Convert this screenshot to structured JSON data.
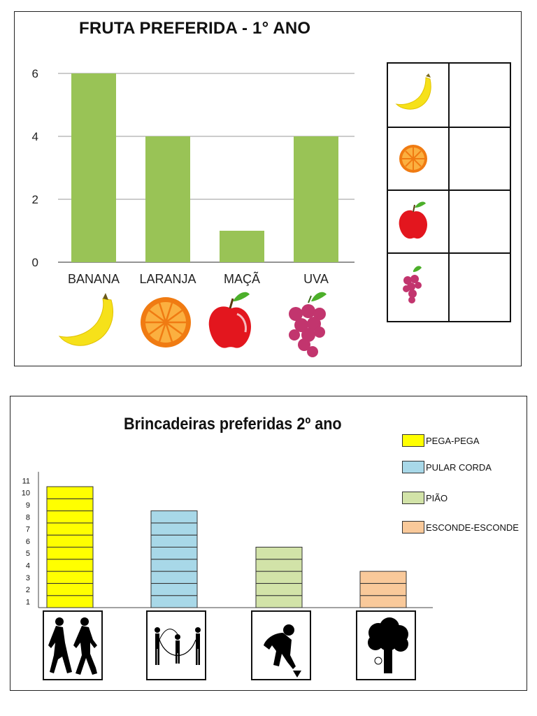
{
  "chart1": {
    "title": "FRUTA PREFERIDA - 1° ANO",
    "y_ticks": [
      "0",
      "2",
      "4",
      "6"
    ],
    "bar_color": "#99c356",
    "icons": [
      "banana-icon",
      "orange-icon",
      "apple-icon",
      "grapes-icon"
    ]
  },
  "chart2": {
    "title": "Brincadeiras  preferidas 2º ano",
    "y_ticks": [
      "1",
      "2",
      "3",
      "4",
      "5",
      "6",
      "7",
      "8",
      "9",
      "10",
      "11"
    ],
    "icons": [
      "running-children-icon",
      "jump-rope-icon",
      "spinning-top-player-icon",
      "tree-icon"
    ]
  },
  "chart_data": [
    {
      "type": "bar",
      "title": "FRUTA PREFERIDA - 1° ANO",
      "categories": [
        "BANANA",
        "LARANJA",
        "MAÇÃ",
        "UVA"
      ],
      "values": [
        6,
        4,
        1,
        4
      ],
      "ylim": [
        0,
        6
      ],
      "grid": true,
      "xlabel": "",
      "ylabel": ""
    },
    {
      "type": "bar",
      "title": "Brincadeiras  preferidas 2º ano",
      "categories": [
        "PEGA-PEGA",
        "PULAR CORDA",
        "PIÃO",
        "ESCONDE-ESCONDE"
      ],
      "values": [
        10,
        8,
        5,
        3
      ],
      "colors": [
        "#ffff00",
        "#a8d8e8",
        "#d2e3a8",
        "#f9c99a"
      ],
      "ylim": [
        0,
        11
      ],
      "legend": "top-right",
      "grid": false
    }
  ]
}
